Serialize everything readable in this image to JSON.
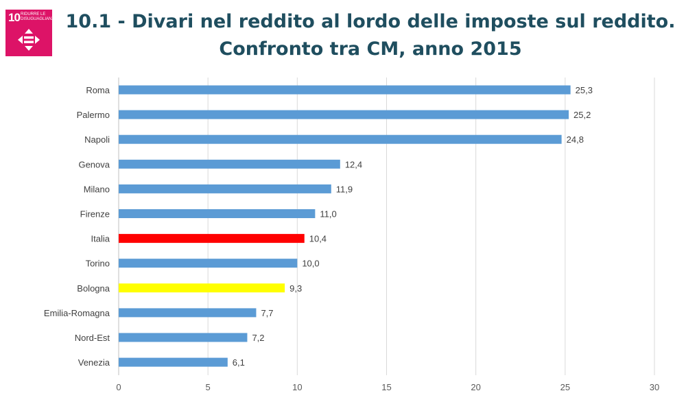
{
  "badge": {
    "number": "10",
    "text": "RIDURRE LE DISUGUAGLIANZE",
    "icon": "equality-icon",
    "color": "#dd1367"
  },
  "title": {
    "line1": "10.1 - Divari nel reddito al lordo delle imposte sul reddito.",
    "line2": "Confronto tra CM, anno 2015",
    "color": "#1f4e5f"
  },
  "chart_data": {
    "type": "bar",
    "orientation": "horizontal",
    "categories": [
      "Roma",
      "Palermo",
      "Napoli",
      "Genova",
      "Milano",
      "Firenze",
      "Italia",
      "Torino",
      "Bologna",
      "Emilia-Romagna",
      "Nord-Est",
      "Venezia"
    ],
    "values": [
      25.3,
      25.2,
      24.8,
      12.4,
      11.9,
      11.0,
      10.4,
      10.0,
      9.3,
      7.7,
      7.2,
      6.1
    ],
    "value_labels": [
      "25,3",
      "25,2",
      "24,8",
      "12,4",
      "11,9",
      "11,0",
      "10,4",
      "10,0",
      "9,3",
      "7,7",
      "7,2",
      "6,1"
    ],
    "colors": [
      "#5b9bd5",
      "#5b9bd5",
      "#5b9bd5",
      "#5b9bd5",
      "#5b9bd5",
      "#5b9bd5",
      "#ff0000",
      "#5b9bd5",
      "#ffff00",
      "#5b9bd5",
      "#5b9bd5",
      "#5b9bd5"
    ],
    "xlim": [
      0,
      30
    ],
    "xticks": [
      0,
      5,
      10,
      15,
      20,
      25,
      30
    ],
    "xtick_labels": [
      "0",
      "5",
      "10",
      "15",
      "20",
      "25",
      "30"
    ],
    "grid": "vertical",
    "legend": "none",
    "title": "",
    "xlabel": "",
    "ylabel": ""
  }
}
